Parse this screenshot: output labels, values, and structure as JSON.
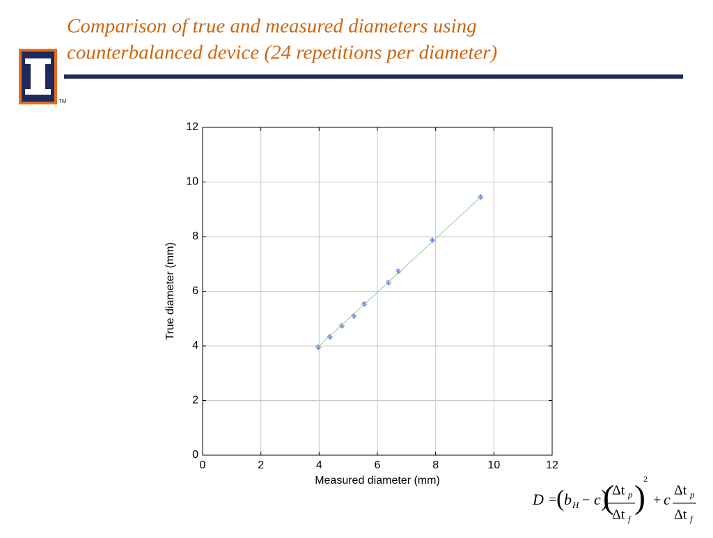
{
  "slide": {
    "title_lines": [
      "Comparison of true and measured diameters using",
      "counterbalanced device (24 repetitions per diameter)"
    ],
    "logo_mark": "TM"
  },
  "chart_data": {
    "type": "scatter",
    "x_label": "Measured diameter (mm)",
    "y_label": "True diameter (mm)",
    "xlim": [
      0,
      12
    ],
    "ylim": [
      0,
      12
    ],
    "xticks": [
      0,
      2,
      4,
      6,
      8,
      10,
      12
    ],
    "yticks": [
      0,
      2,
      4,
      6,
      8,
      10,
      12
    ],
    "grid": true,
    "series": [
      {
        "color": "#3a5fd9",
        "style": "markers",
        "x": [
          3.97,
          4.37,
          4.78,
          5.19,
          5.55,
          6.38,
          6.72,
          7.89,
          9.54
        ],
        "values": [
          3.95,
          4.33,
          4.74,
          5.1,
          5.53,
          6.32,
          6.73,
          7.87,
          9.45
        ]
      },
      {
        "color": "#8fd18f",
        "style": "line",
        "x": [
          3.92,
          9.6
        ],
        "values": [
          3.92,
          9.5
        ]
      }
    ]
  },
  "formula": {
    "tokens": [
      "D",
      "=",
      "(",
      "b",
      "H",
      "−",
      "c",
      ")",
      "(",
      "Δt",
      "p",
      "Δt",
      "f",
      ")",
      "2",
      "+",
      "c",
      "Δt",
      "p",
      "Δt",
      "f"
    ]
  }
}
